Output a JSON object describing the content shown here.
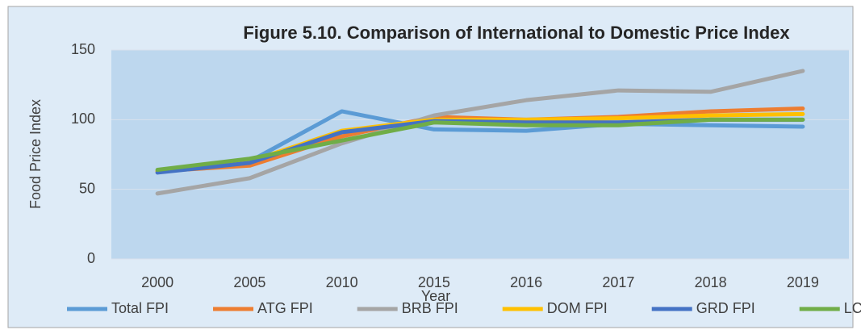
{
  "chart_data": {
    "type": "line",
    "title": "Figure 5.10. Comparison of International to Domestic Price Index",
    "x_label": "Year",
    "y_label": "Food Price Index",
    "categories": [
      "2000",
      "2005",
      "2010",
      "2015",
      "2016",
      "2017",
      "2018",
      "2019"
    ],
    "series": [
      {
        "name": "Total FPI",
        "color": "#5b9bd5",
        "values": [
          63,
          70,
          106,
          93,
          92,
          97,
          96,
          95
        ]
      },
      {
        "name": "ATG FPI",
        "color": "#ed7d31",
        "values": [
          63,
          67,
          88,
          102,
          100,
          102,
          106,
          108
        ]
      },
      {
        "name": "BRB FPI",
        "color": "#a5a5a5",
        "values": [
          47,
          58,
          83,
          103,
          114,
          121,
          120,
          135
        ]
      },
      {
        "name": "DOM FPI",
        "color": "#ffc000",
        "values": [
          63,
          70,
          92,
          100,
          100,
          101,
          103,
          104
        ]
      },
      {
        "name": "GRD FPI",
        "color": "#4472c4",
        "values": [
          62,
          69,
          91,
          99,
          98,
          98,
          100,
          100
        ]
      },
      {
        "name": "LCA FPI",
        "color": "#70ad47",
        "values": [
          64,
          72,
          85,
          98,
          96,
          96,
          100,
          100
        ]
      }
    ],
    "ylim": [
      0,
      150
    ],
    "yticks": [
      0,
      50,
      100,
      150
    ],
    "grid": true,
    "legend": "bottom"
  }
}
